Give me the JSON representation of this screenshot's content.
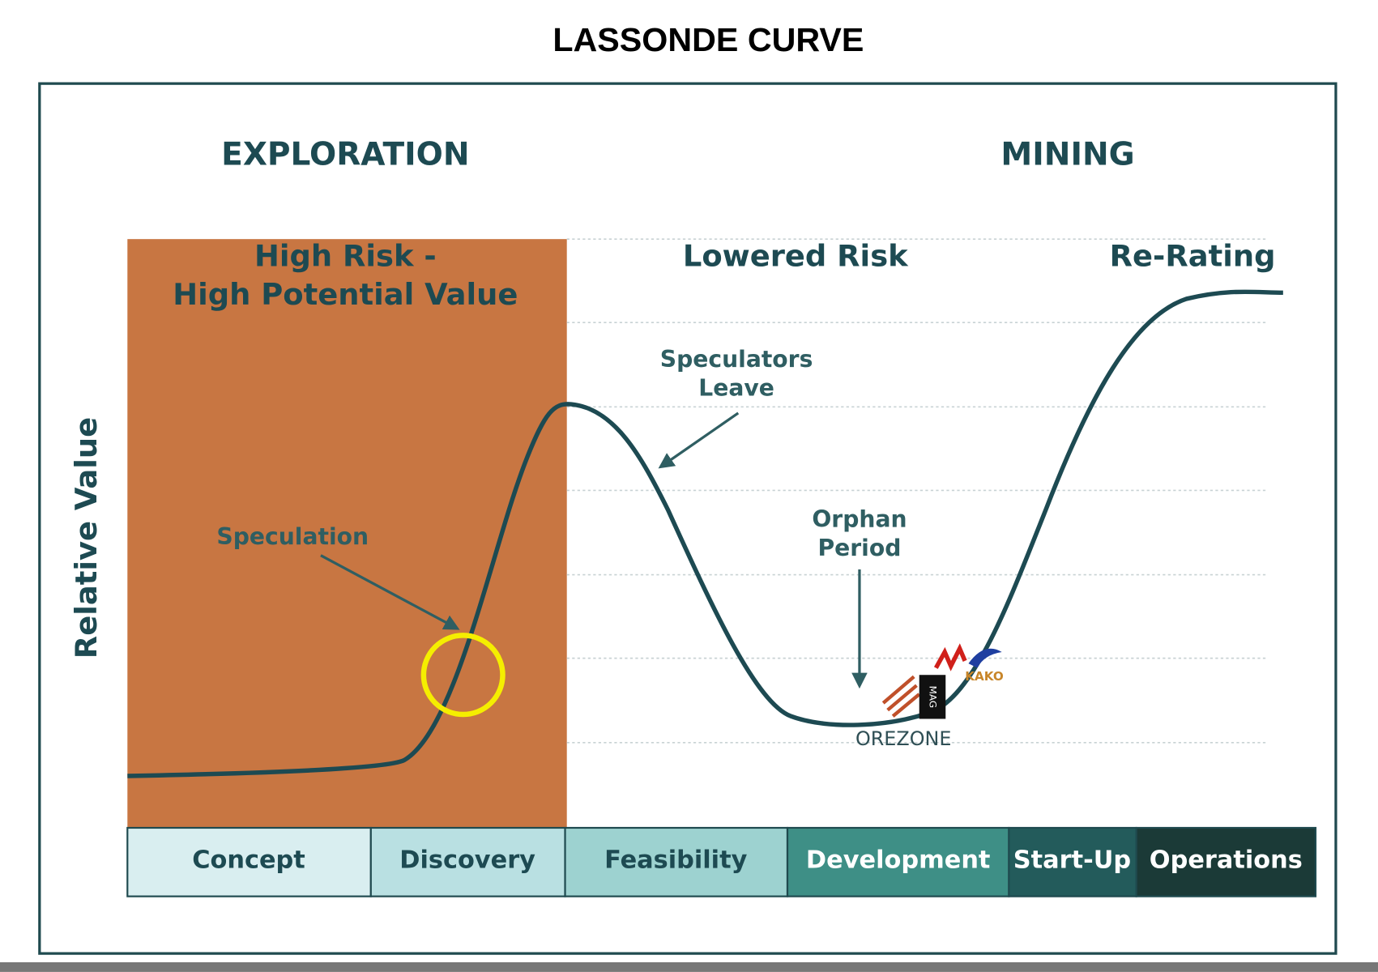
{
  "title": "LASSONDE CURVE",
  "sections": [
    "EXPLORATION",
    "MINING"
  ],
  "zones": {
    "high_risk": [
      "High Risk -",
      "High Potential Value"
    ],
    "lowered_risk": "Lowered Risk",
    "re_rating": "Re-Rating"
  },
  "axis_label": "Relative Value",
  "annotations": {
    "speculation": "Speculation",
    "speculators_leave": [
      "Speculators",
      "Leave"
    ],
    "orphan_period": [
      "Orphan",
      "Period"
    ]
  },
  "logos": {
    "orezone": "OREZONE",
    "mag": "MAG",
    "kako": "KAKO"
  },
  "stages": [
    "Concept",
    "Discovery",
    "Feasibility",
    "Development",
    "Start-Up",
    "Operations"
  ]
}
